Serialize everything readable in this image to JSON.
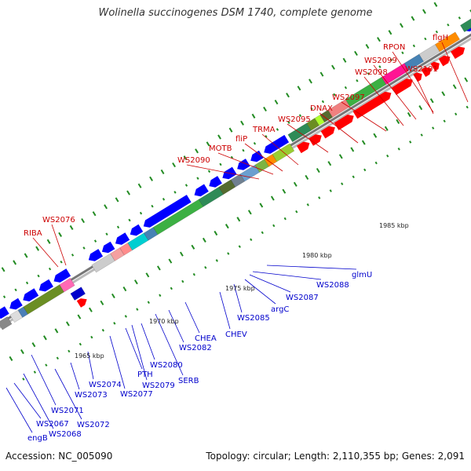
{
  "title": "Wolinella succinogenes DSM 1740, complete genome",
  "footer": {
    "accession": "Accession: NC_005090",
    "topology": "Topology: circular; Length: 2,110,355 bp; Genes: 2,091"
  },
  "colors": {
    "backbone": "#999999",
    "forward_gene": "#ff0000",
    "reverse_gene": "#0000ff",
    "forward_label": "#cc0000",
    "reverse_label": "#0000cc",
    "tick": "#228b22"
  },
  "kbp_labels": [
    "1965 kbp",
    "1970 kbp",
    "1975 kbp",
    "1980 kbp",
    "1985 kbp"
  ],
  "forward_labels": [
    "RIBA",
    "WS2076",
    "WS2090",
    "MOTB",
    "fliP",
    "TRMA",
    "WS2095",
    "DNAX",
    "WS2097",
    "WS2098",
    "WS2099",
    "RPON",
    "WS2101",
    "flgH"
  ],
  "reverse_labels": [
    "engB",
    "WS2067",
    "WS2068",
    "WS2071",
    "WS2072",
    "WS2073",
    "WS2074",
    "WS2077",
    "PTH",
    "WS2079",
    "WS2080",
    "SERB",
    "WS2082",
    "CHEA",
    "CHEV",
    "WS2085",
    "argC",
    "WS2087",
    "WS2088",
    "glmU"
  ]
}
